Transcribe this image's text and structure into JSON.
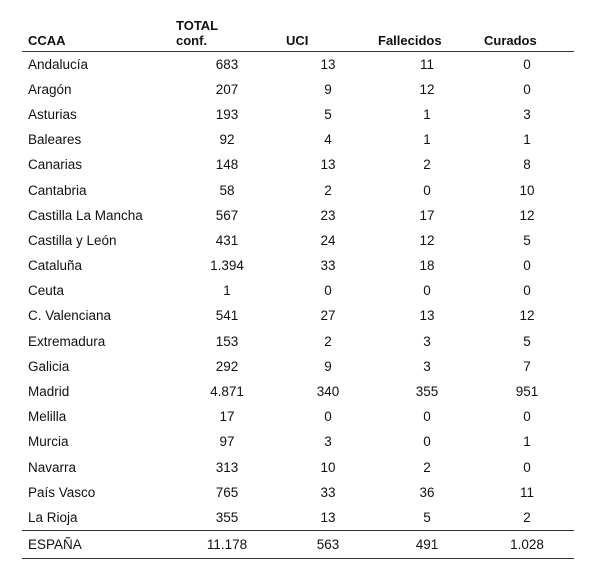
{
  "headers": {
    "ccaa": "CCAA",
    "total_line1": "TOTAL",
    "total_line2": "conf.",
    "uci": "UCI",
    "fallecidos": "Fallecidos",
    "curados": "Curados"
  },
  "rows": [
    {
      "name": "Andalucía",
      "total": "683",
      "uci": "13",
      "fallecidos": "11",
      "curados": "0"
    },
    {
      "name": "Aragón",
      "total": "207",
      "uci": "9",
      "fallecidos": "12",
      "curados": "0"
    },
    {
      "name": "Asturias",
      "total": "193",
      "uci": "5",
      "fallecidos": "1",
      "curados": "3"
    },
    {
      "name": "Baleares",
      "total": "92",
      "uci": "4",
      "fallecidos": "1",
      "curados": "1"
    },
    {
      "name": "Canarias",
      "total": "148",
      "uci": "13",
      "fallecidos": "2",
      "curados": "8"
    },
    {
      "name": "Cantabria",
      "total": "58",
      "uci": "2",
      "fallecidos": "0",
      "curados": "10"
    },
    {
      "name": "Castilla La Mancha",
      "total": "567",
      "uci": "23",
      "fallecidos": "17",
      "curados": "12"
    },
    {
      "name": "Castilla y León",
      "total": "431",
      "uci": "24",
      "fallecidos": "12",
      "curados": "5"
    },
    {
      "name": "Cataluña",
      "total": "1.394",
      "uci": "33",
      "fallecidos": "18",
      "curados": "0"
    },
    {
      "name": "Ceuta",
      "total": "1",
      "uci": "0",
      "fallecidos": "0",
      "curados": "0"
    },
    {
      "name": "C. Valenciana",
      "total": "541",
      "uci": "27",
      "fallecidos": "13",
      "curados": "12"
    },
    {
      "name": "Extremadura",
      "total": "153",
      "uci": "2",
      "fallecidos": "3",
      "curados": "5"
    },
    {
      "name": "Galicia",
      "total": "292",
      "uci": "9",
      "fallecidos": "3",
      "curados": "7"
    },
    {
      "name": "Madrid",
      "total": "4.871",
      "uci": "340",
      "fallecidos": "355",
      "curados": "951"
    },
    {
      "name": "Melilla",
      "total": "17",
      "uci": "0",
      "fallecidos": "0",
      "curados": "0"
    },
    {
      "name": "Murcia",
      "total": "97",
      "uci": "3",
      "fallecidos": "0",
      "curados": "1"
    },
    {
      "name": "Navarra",
      "total": "313",
      "uci": "10",
      "fallecidos": "2",
      "curados": "0"
    },
    {
      "name": "País Vasco",
      "total": "765",
      "uci": "33",
      "fallecidos": "36",
      "curados": "11"
    },
    {
      "name": "La Rioja",
      "total": "355",
      "uci": "13",
      "fallecidos": "5",
      "curados": "2"
    }
  ],
  "total_row": {
    "name": "ESPAÑA",
    "total": "11.178",
    "uci": "563",
    "fallecidos": "491",
    "curados": "1.028"
  }
}
